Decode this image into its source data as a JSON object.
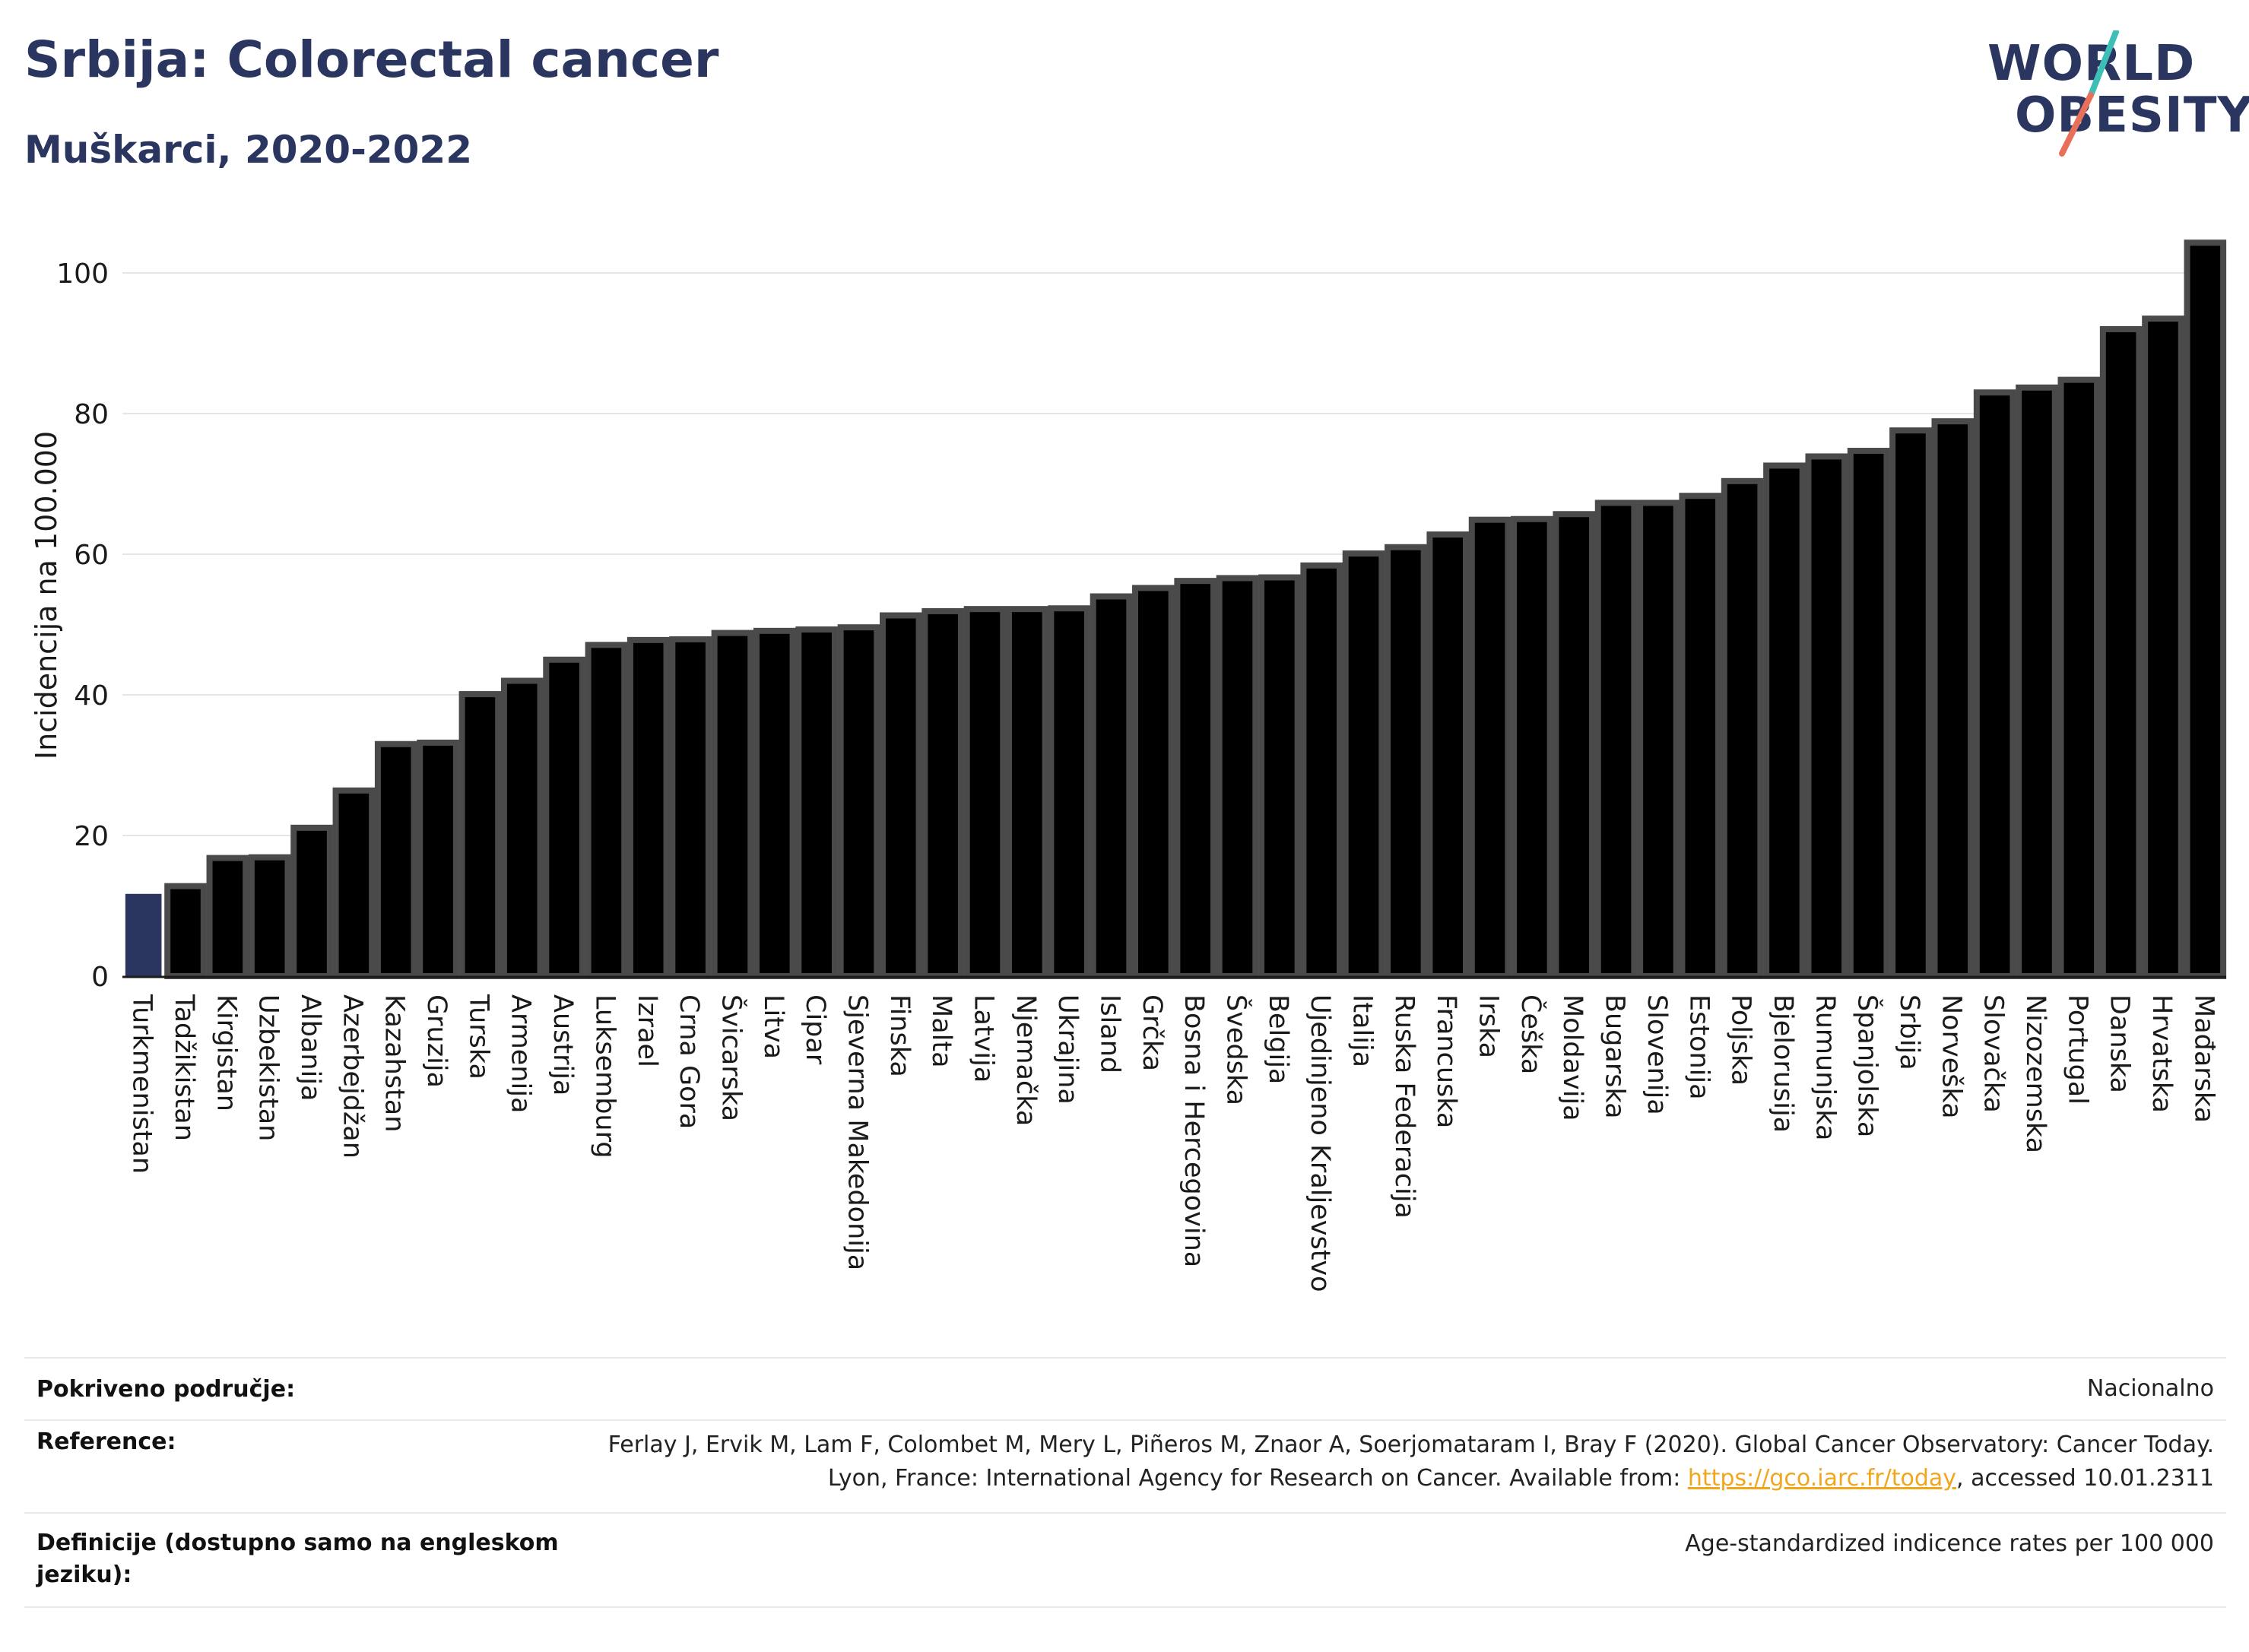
{
  "title": "Srbija: Colorectal cancer",
  "subtitle": "Muškarci, 2020-2022",
  "logo": {
    "line1": "WORLD",
    "line2": "OBESITY",
    "accent_teal": "#3dbfb8",
    "accent_coral": "#e8705a"
  },
  "colors": {
    "bar": "#000000",
    "bar_border": "#4a4a4a",
    "highlight": "#2a3660",
    "grid": "#e6e6ea",
    "text_dark": "#2a3660"
  },
  "chart_data": {
    "type": "bar",
    "ylabel": "Incidencija na 100.000",
    "ylim": [
      0,
      104
    ],
    "yticks": [
      0,
      20,
      40,
      60,
      80,
      100
    ],
    "grid": true,
    "highlight_category": "Turkmenistan",
    "categories": [
      "Turkmenistan",
      "Tadžikistan",
      "Kirgistan",
      "Uzbekistan",
      "Albanija",
      "Azerbejdžan",
      "Kazahstan",
      "Gruzija",
      "Turska",
      "Armenija",
      "Austrija",
      "Luksemburg",
      "Izrael",
      "Crna Gora",
      "Švicarska",
      "Litva",
      "Cipar",
      "Sjeverna Makedonija",
      "Finska",
      "Malta",
      "Latvija",
      "Njemačka",
      "Ukrajina",
      "Island",
      "Grčka",
      "Bosna i Hercegovina",
      "Švedska",
      "Belgija",
      "Ujedinjeno Kraljevstvo",
      "Italija",
      "Ruska Federacija",
      "Francuska",
      "Irska",
      "Češka",
      "Moldavija",
      "Bugarska",
      "Slovenija",
      "Estonija",
      "Poljska",
      "Bjelorusija",
      "Rumunjska",
      "Španjolska",
      "Srbija",
      "Norveška",
      "Slovačka",
      "Nizozemska",
      "Portugal",
      "Danska",
      "Hrvatska",
      "Mađarska"
    ],
    "values": [
      11.7,
      12.8,
      16.8,
      16.9,
      21.1,
      26.4,
      33.0,
      33.2,
      40.1,
      42.0,
      45.0,
      47.1,
      47.8,
      47.9,
      48.8,
      49.1,
      49.3,
      49.6,
      51.3,
      51.9,
      52.2,
      52.2,
      52.3,
      54.0,
      55.2,
      56.2,
      56.6,
      56.7,
      58.4,
      60.1,
      61.0,
      62.8,
      64.9,
      65.0,
      65.7,
      67.3,
      67.3,
      68.3,
      70.4,
      72.6,
      73.9,
      74.7,
      77.6,
      78.9,
      83.0,
      83.7,
      84.8,
      92.0,
      93.5,
      104.3
    ]
  },
  "footer": {
    "coverage_label": "Pokriveno područje:",
    "coverage_value": "Nacionalno",
    "reference_label": "Reference:",
    "reference_text_1": "Ferlay J, Ervik M, Lam F, Colombet M, Mery L, Piñeros M, Znaor A, Soerjomataram I, Bray F (2020). Global Cancer Observatory: Cancer Today. Lyon, France: International Agency for Research on Cancer. Available from: ",
    "reference_link": "https://gco.iarc.fr/today",
    "reference_text_2": ", accessed 10.01.2311",
    "definitions_label": "Definicije (dostupno samo na engleskom jeziku):",
    "definitions_value": "Age-standardized indicence rates per 100 000"
  }
}
